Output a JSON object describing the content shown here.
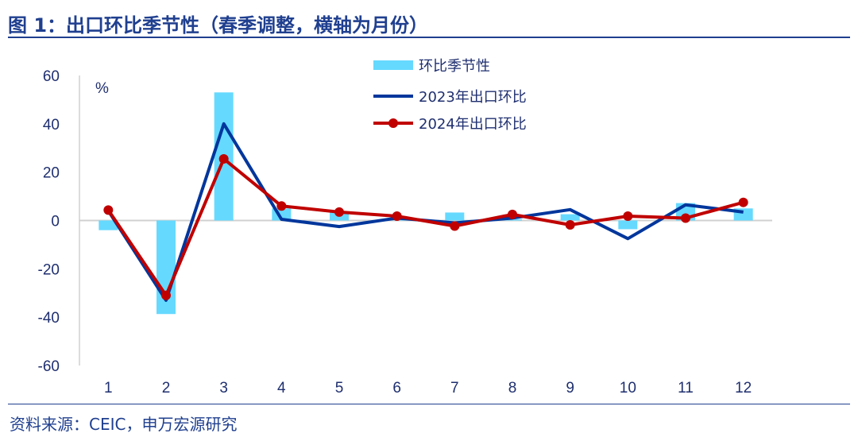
{
  "title": "图 1：出口环比季节性（春季调整，横轴为月份）",
  "source": "资料来源：CEIC，申万宏源研究",
  "colors": {
    "bar": "#66d9ff",
    "s2023": "#00369c",
    "s2024": "#c00000"
  },
  "chart_data": {
    "type": "bar+line",
    "title": "图 1：出口环比季节性（春季调整，横轴为月份）",
    "ylabel": "%",
    "ylim": [
      -60,
      60
    ],
    "yticks": [
      60,
      40,
      20,
      0,
      -20,
      -40,
      -60
    ],
    "categories": [
      "1",
      "2",
      "3",
      "4",
      "5",
      "6",
      "7",
      "8",
      "9",
      "10",
      "11",
      "12"
    ],
    "legend_position": "top-right",
    "series": [
      {
        "name": "环比季节性",
        "type": "bar",
        "values": [
          -4,
          -38.7,
          53,
          5,
          3.3,
          1,
          3.3,
          0.5,
          2.6,
          -3.6,
          7.2,
          5
        ]
      },
      {
        "name": "2023年出口环比",
        "type": "line",
        "values": [
          4,
          -33,
          40,
          0.5,
          -2.5,
          1,
          -1,
          1,
          4.5,
          -7.5,
          6.5,
          3.5
        ]
      },
      {
        "name": "2024年出口环比",
        "type": "line",
        "markers": true,
        "values": [
          4.3,
          -31,
          25.5,
          6,
          3.5,
          1.8,
          -2.3,
          2.5,
          -1.8,
          1.8,
          1,
          7.5
        ]
      }
    ]
  }
}
